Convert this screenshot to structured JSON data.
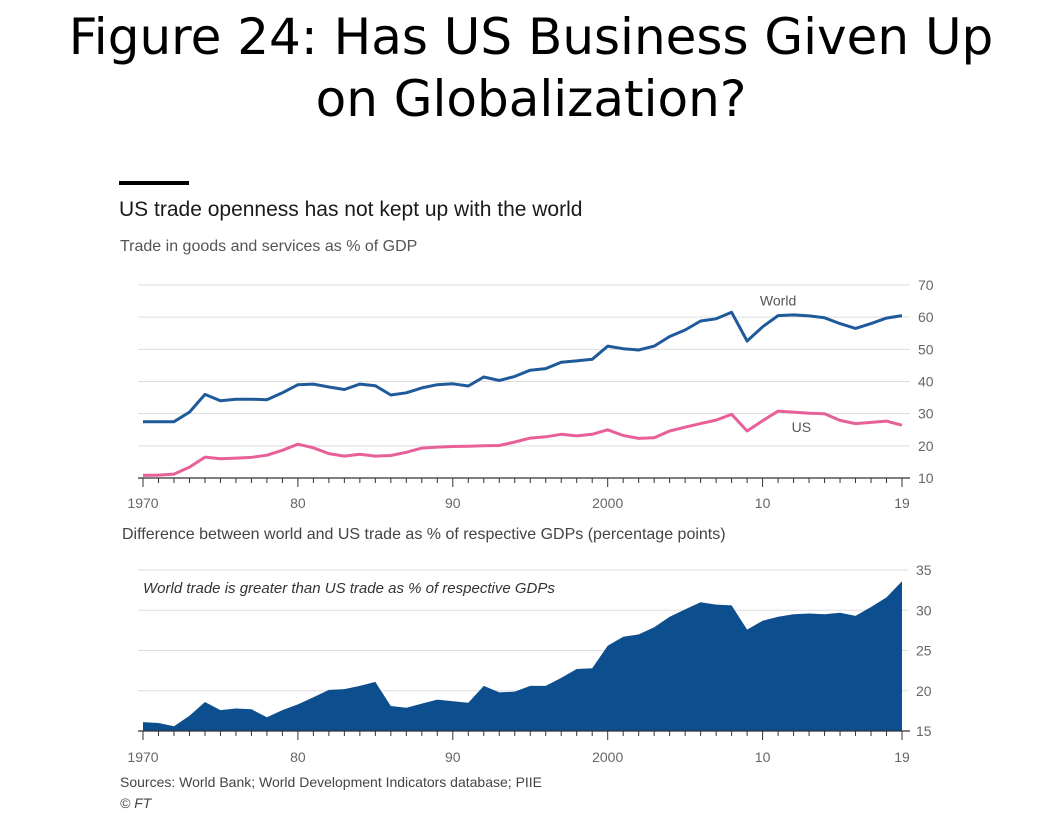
{
  "page": {
    "title": "Figure 24: Has US Business Given Up on Globalization?",
    "title_line1": "Figure 24: Has US Business Given Up",
    "title_line2": "on Globalization?"
  },
  "chart_headline": "US trade openness has not kept up with the world",
  "sources": "Sources: World Bank; World Development Indicators database; PIIE",
  "copyright": "© FT",
  "colors": {
    "world": "#1f5a9a",
    "us": "#e8609a",
    "difference_fill": "#0d4e8e",
    "grid": "#dddddd",
    "axis": "#333333"
  },
  "chart_data": [
    {
      "type": "line",
      "title": "",
      "subtitle": "Trade in goods and services as % of GDP",
      "xlabel": "",
      "ylabel": "",
      "x": [
        1970,
        1971,
        1972,
        1973,
        1974,
        1975,
        1976,
        1977,
        1978,
        1979,
        1980,
        1981,
        1982,
        1983,
        1984,
        1985,
        1986,
        1987,
        1988,
        1989,
        1990,
        1991,
        1992,
        1993,
        1994,
        1995,
        1996,
        1997,
        1998,
        1999,
        2000,
        2001,
        2002,
        2003,
        2004,
        2005,
        2006,
        2007,
        2008,
        2009,
        2010,
        2011,
        2012,
        2013,
        2014,
        2015,
        2016,
        2017,
        2018,
        2019
      ],
      "x_tick_labels": [
        "1970",
        "80",
        "90",
        "2000",
        "10",
        "19"
      ],
      "x_tick_values": [
        1970,
        1980,
        1990,
        2000,
        2010,
        2019
      ],
      "ylim": [
        10,
        70
      ],
      "y_ticks": [
        10,
        20,
        30,
        40,
        50,
        60,
        70
      ],
      "grid": true,
      "series": [
        {
          "name": "World",
          "color": "#1f5a9a",
          "values": [
            27.5,
            27.5,
            27.5,
            30.5,
            36,
            34,
            34.5,
            34.5,
            34.3,
            36.5,
            39,
            39.2,
            38.3,
            37.5,
            39.2,
            38.7,
            35.8,
            36.5,
            38,
            39,
            39.3,
            38.6,
            41.4,
            40.3,
            41.6,
            43.5,
            44,
            46,
            46.4,
            46.9,
            51,
            50.2,
            49.8,
            51,
            54,
            56,
            58.8,
            59.5,
            61.5,
            52.6,
            57,
            60.5,
            60.7,
            60.4,
            59.8,
            58,
            56.5,
            58,
            59.7,
            60.5
          ]
        },
        {
          "name": "US",
          "color": "#e8609a",
          "values": [
            10.8,
            10.9,
            11.2,
            13.4,
            16.5,
            16,
            16.2,
            16.4,
            17.1,
            18.6,
            20.5,
            19.4,
            17.6,
            16.8,
            17.4,
            16.8,
            17,
            18,
            19.3,
            19.6,
            19.8,
            19.9,
            20,
            20.1,
            21.2,
            22.4,
            22.8,
            23.6,
            23.1,
            23.6,
            25,
            23.2,
            22.3,
            22.5,
            24.6,
            25.8,
            26.9,
            28,
            29.8,
            24.6,
            27.8,
            30.8,
            30.5,
            30.1,
            30,
            27.9,
            26.9,
            27.3,
            27.7,
            26.4
          ]
        }
      ]
    },
    {
      "type": "area",
      "title": "",
      "subtitle": "Difference between world and US trade as % of respective GDPs (percentage points)",
      "annotation": "World trade is greater than US trade as % of respective GDPs",
      "xlabel": "",
      "ylabel": "",
      "x": [
        1970,
        1971,
        1972,
        1973,
        1974,
        1975,
        1976,
        1977,
        1978,
        1979,
        1980,
        1981,
        1982,
        1983,
        1984,
        1985,
        1986,
        1987,
        1988,
        1989,
        1990,
        1991,
        1992,
        1993,
        1994,
        1995,
        1996,
        1997,
        1998,
        1999,
        2000,
        2001,
        2002,
        2003,
        2004,
        2005,
        2006,
        2007,
        2008,
        2009,
        2010,
        2011,
        2012,
        2013,
        2014,
        2015,
        2016,
        2017,
        2018,
        2019
      ],
      "x_tick_labels": [
        "1970",
        "80",
        "90",
        "2000",
        "10",
        "19"
      ],
      "x_tick_values": [
        1970,
        1980,
        1990,
        2000,
        2010,
        2019
      ],
      "ylim": [
        15,
        35
      ],
      "y_ticks": [
        15,
        20,
        25,
        30,
        35
      ],
      "grid": true,
      "series": [
        {
          "name": "",
          "color": "#0d4e8e",
          "values": [
            16.1,
            16,
            15.6,
            16.9,
            18.6,
            17.6,
            17.8,
            17.7,
            16.7,
            17.6,
            18.3,
            19.2,
            20.1,
            20.2,
            20.6,
            21.1,
            18.1,
            17.9,
            18.4,
            18.9,
            18.7,
            18.5,
            20.6,
            19.8,
            19.9,
            20.6,
            20.6,
            21.6,
            22.7,
            22.8,
            25.6,
            26.7,
            27,
            27.9,
            29.2,
            30.1,
            31,
            30.7,
            30.6,
            27.6,
            28.7,
            29.2,
            29.5,
            29.6,
            29.5,
            29.7,
            29.3,
            30.4,
            31.6,
            33.6
          ]
        }
      ]
    }
  ]
}
